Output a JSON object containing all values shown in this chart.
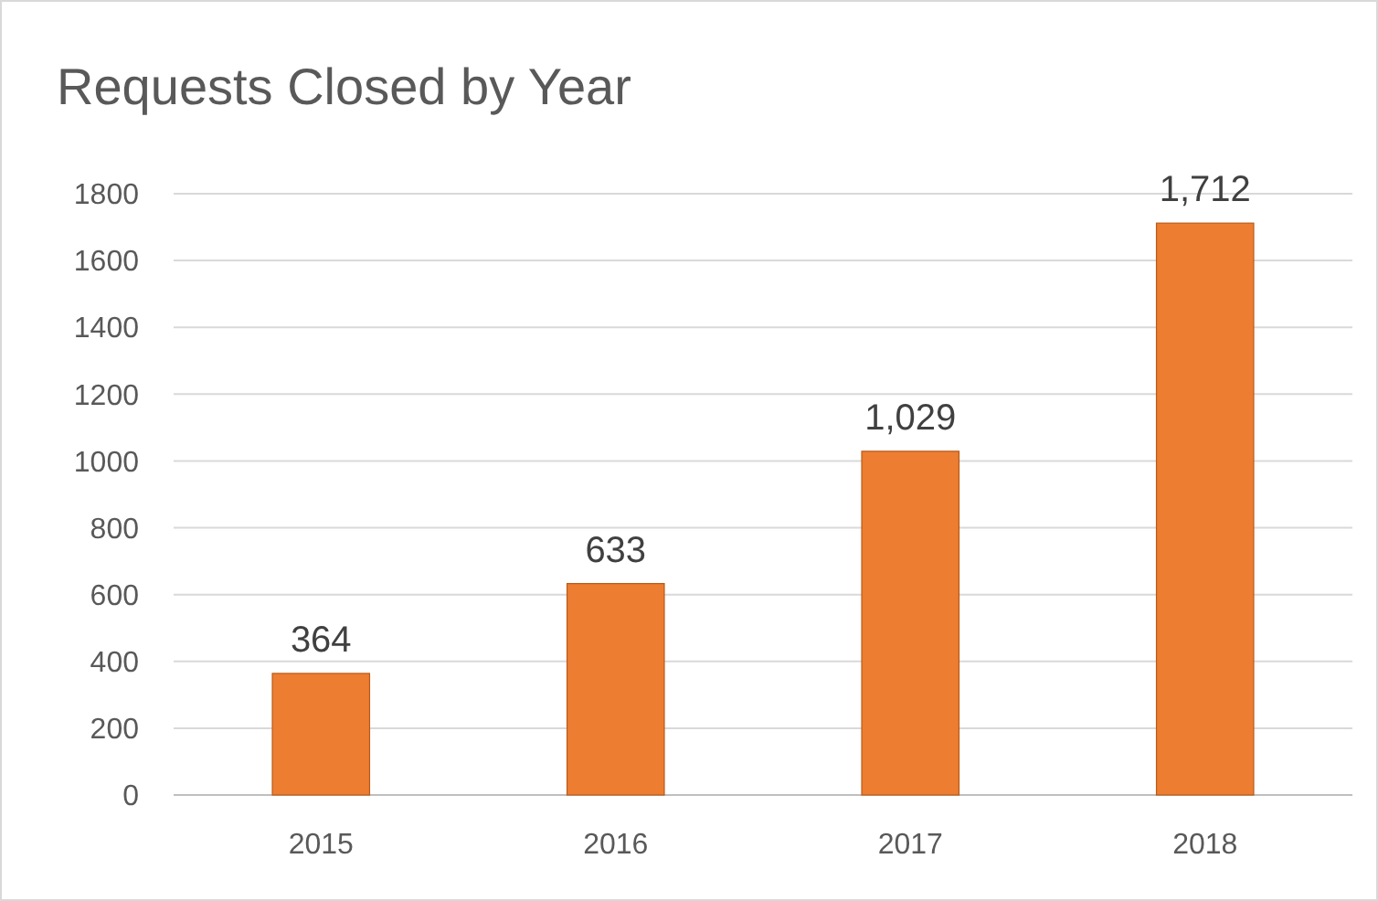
{
  "chart_data": {
    "type": "bar",
    "title": "Requests Closed by Year",
    "categories": [
      "2015",
      "2016",
      "2017",
      "2018"
    ],
    "values": [
      364,
      633,
      1029,
      1712
    ],
    "value_labels": [
      "364",
      "633",
      "1,029",
      "1,712"
    ],
    "color": "#ed7d31",
    "ylim": [
      0,
      1800
    ],
    "yticks": [
      0,
      200,
      400,
      600,
      800,
      1000,
      1200,
      1400,
      1600,
      1800
    ],
    "grid": "y"
  }
}
